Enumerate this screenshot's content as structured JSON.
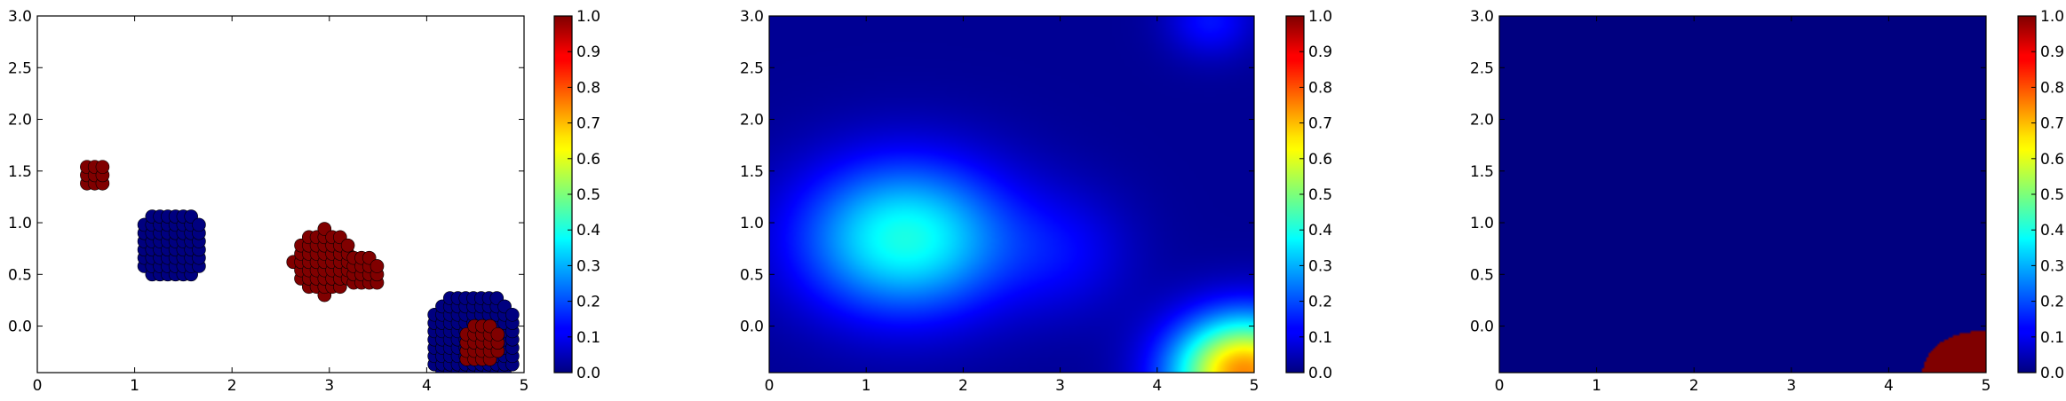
{
  "colormap": "jet",
  "chart_data": [
    {
      "type": "scatter",
      "xlim": [
        0,
        5
      ],
      "ylim": [
        -0.45,
        3.0
      ],
      "xticks": [
        "0",
        "1",
        "2",
        "3",
        "4",
        "5"
      ],
      "yticks": [
        "0.0",
        "0.5",
        "1.0",
        "1.5",
        "2.0",
        "2.5",
        "3.0"
      ],
      "ytick_values": [
        0.0,
        0.5,
        1.0,
        1.5,
        2.0,
        2.5,
        3.0
      ],
      "xtick_values": [
        0,
        1,
        2,
        3,
        4,
        5
      ],
      "colorbar": {
        "min": 0.0,
        "max": 1.0,
        "ticks": [
          "0.0",
          "0.1",
          "0.2",
          "0.3",
          "0.4",
          "0.5",
          "0.6",
          "0.7",
          "0.8",
          "0.9",
          "1.0"
        ]
      },
      "clusters": [
        {
          "label": 1,
          "center": [
            0.58,
            1.45
          ],
          "radius": 0.15
        },
        {
          "label": 0,
          "center": [
            1.38,
            0.78
          ],
          "radius": 0.36
        },
        {
          "label": 1,
          "center": [
            2.95,
            0.62
          ],
          "radius": 0.32
        },
        {
          "label": 1,
          "center": [
            3.35,
            0.52
          ],
          "radius": 0.18
        },
        {
          "label": 0,
          "center": [
            4.48,
            -0.13
          ],
          "radius": 0.48
        },
        {
          "label": 1,
          "center": [
            4.55,
            -0.18
          ],
          "radius": 0.22
        }
      ]
    },
    {
      "type": "heatmap",
      "xlim": [
        0,
        5
      ],
      "ylim": [
        -0.45,
        3.0
      ],
      "xticks": [
        "0",
        "1",
        "2",
        "3",
        "4",
        "5"
      ],
      "yticks": [
        "0.0",
        "0.5",
        "1.0",
        "1.5",
        "2.0",
        "2.5",
        "3.0"
      ],
      "ytick_values": [
        0.0,
        0.5,
        1.0,
        1.5,
        2.0,
        2.5,
        3.0
      ],
      "xtick_values": [
        0,
        1,
        2,
        3,
        4,
        5
      ],
      "colorbar": {
        "min": 0.0,
        "max": 1.0,
        "ticks": [
          "0.0",
          "0.1",
          "0.2",
          "0.3",
          "0.4",
          "0.5",
          "0.6",
          "0.7",
          "0.8",
          "0.9",
          "1.0"
        ]
      },
      "blobs": [
        {
          "center": [
            1.4,
            0.85
          ],
          "spread": [
            1.1,
            0.75
          ],
          "value": 0.38
        },
        {
          "center": [
            4.9,
            -0.45
          ],
          "spread": [
            0.75,
            0.55
          ],
          "value": 0.72
        },
        {
          "center": [
            4.55,
            2.95
          ],
          "spread": [
            0.45,
            0.35
          ],
          "value": 0.12
        },
        {
          "center": [
            3.1,
            0.7
          ],
          "spread": [
            0.7,
            0.6
          ],
          "value": 0.08
        }
      ]
    },
    {
      "type": "heatmap",
      "xlim": [
        0,
        5
      ],
      "ylim": [
        -0.45,
        3.0
      ],
      "xticks": [
        "0",
        "1",
        "2",
        "3",
        "4",
        "5"
      ],
      "yticks": [
        "0.0",
        "0.5",
        "1.0",
        "1.5",
        "2.0",
        "2.5",
        "3.0"
      ],
      "ytick_values": [
        0.0,
        0.5,
        1.0,
        1.5,
        2.0,
        2.5,
        3.0
      ],
      "xtick_values": [
        0,
        1,
        2,
        3,
        4,
        5
      ],
      "colorbar": {
        "min": 0.0,
        "max": 1.0,
        "ticks": [
          "0.0",
          "0.1",
          "0.2",
          "0.3",
          "0.4",
          "0.5",
          "0.6",
          "0.7",
          "0.8",
          "0.9",
          "1.0"
        ]
      },
      "base_value": 0.0,
      "region": {
        "value": 1.0,
        "center": [
          4.95,
          -0.45
        ],
        "radius": [
          0.6,
          0.4
        ]
      }
    }
  ]
}
